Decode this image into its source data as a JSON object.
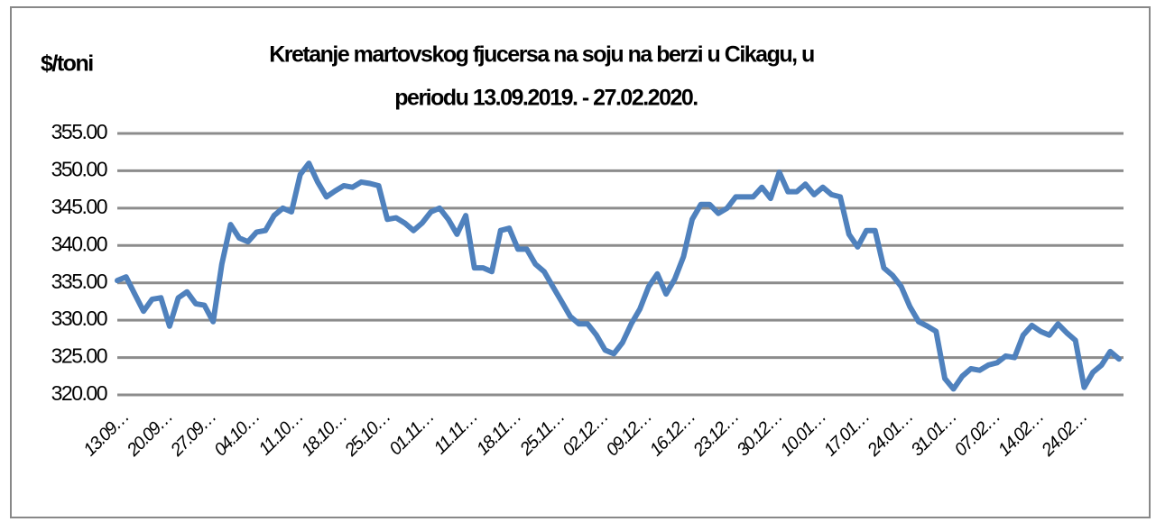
{
  "chart_data": {
    "type": "line",
    "title": [
      "Kretanje martovskog  fjucersa na soju na berzi u Cikagu,  u",
      "periodu  13.09.2019. - 27.02.2020."
    ],
    "y_label": "$/toni",
    "categories": [
      "13.09…",
      null,
      null,
      null,
      null,
      "20.09…",
      null,
      null,
      null,
      null,
      "27.09…",
      null,
      null,
      null,
      null,
      "04.10…",
      null,
      null,
      null,
      null,
      "11.10…",
      null,
      null,
      null,
      null,
      "18.10…",
      null,
      null,
      null,
      null,
      "25.10…",
      null,
      null,
      null,
      null,
      "01.11…",
      null,
      null,
      null,
      null,
      "11.11…",
      null,
      null,
      null,
      null,
      "18.11…",
      null,
      null,
      null,
      null,
      "25.11…",
      null,
      null,
      null,
      null,
      "02.12…",
      null,
      null,
      null,
      null,
      "09.12…",
      null,
      null,
      null,
      null,
      "16.12…",
      null,
      null,
      null,
      null,
      "23.12…",
      null,
      null,
      null,
      null,
      "30.12…",
      null,
      null,
      null,
      null,
      "10.01…",
      null,
      null,
      null,
      null,
      "17.01…",
      null,
      null,
      null,
      null,
      "24.01…",
      null,
      null,
      null,
      null,
      "31.01…",
      null,
      null,
      null,
      null,
      "07.02…",
      null,
      null,
      null,
      null,
      "14.02…",
      null,
      null,
      null,
      null,
      "24.02…",
      null,
      null,
      null,
      null,
      null
    ],
    "values": [
      335.3,
      335.8,
      333.5,
      331.2,
      332.8,
      333,
      329.2,
      333,
      333.8,
      332.2,
      332,
      329.8,
      337.5,
      342.8,
      341,
      340.5,
      341.8,
      342,
      344,
      345,
      344.5,
      349.5,
      351,
      348.5,
      346.5,
      347.3,
      348,
      347.8,
      348.5,
      348.3,
      348,
      343.5,
      343.7,
      343,
      342,
      343,
      344.5,
      345,
      343.5,
      341.5,
      344,
      337,
      337,
      336.5,
      342,
      342.3,
      339.5,
      339.5,
      337.5,
      336.5,
      334.5,
      332.5,
      330.5,
      329.5,
      329.5,
      328,
      326,
      325.5,
      327,
      329.5,
      331.5,
      334.5,
      336.2,
      333.5,
      335.5,
      338.5,
      343.5,
      345.5,
      345.5,
      344.3,
      345,
      346.5,
      346.5,
      346.5,
      347.8,
      346.3,
      349.8,
      347.2,
      347.2,
      348.2,
      346.8,
      347.8,
      346.8,
      346.5,
      341.5,
      339.8,
      342,
      342,
      337,
      336,
      334.5,
      331.8,
      329.8,
      329.2,
      328.5,
      322.2,
      320.8,
      322.5,
      323.5,
      323.3,
      324,
      324.3,
      325.2,
      325,
      328,
      329.3,
      328.5,
      328,
      329.5,
      328.3,
      327.3,
      321,
      323,
      324,
      325.8,
      324.8
    ],
    "color": "#4f81bd",
    "ylim": [
      320,
      355
    ],
    "yticks": [
      {
        "value": 320,
        "label": "320.00"
      },
      {
        "value": 325,
        "label": "325.00"
      },
      {
        "value": 330,
        "label": "330.00"
      },
      {
        "value": 335,
        "label": "335.00"
      },
      {
        "value": 340,
        "label": "340.00"
      },
      {
        "value": 345,
        "label": "345.00"
      },
      {
        "value": 350,
        "label": "350.00"
      },
      {
        "value": 355,
        "label": "355.00"
      }
    ],
    "grid": true
  }
}
